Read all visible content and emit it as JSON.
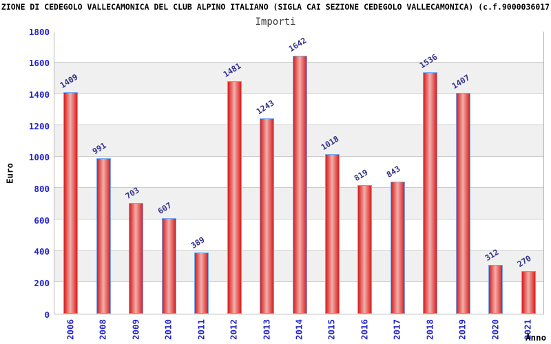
{
  "header": {
    "title": "ZIONE DI CEDEGOLO VALLECAMONICA DEL CLUB ALPINO ITALIANO (SIGLA CAI SEZIONE CEDEGOLO VALLECAMONICA) (c.f.9000036017",
    "subtitle": "Importi"
  },
  "chart_data": {
    "type": "bar",
    "title": "Importi",
    "xlabel": "Anno",
    "ylabel": "Euro",
    "categories": [
      "2006",
      "2008",
      "2009",
      "2010",
      "2011",
      "2012",
      "2013",
      "2014",
      "2015",
      "2016",
      "2017",
      "2018",
      "2019",
      "2020",
      "2021"
    ],
    "values": [
      1409,
      991,
      703,
      607,
      389,
      1481,
      1243,
      1642,
      1018,
      819,
      843,
      1536,
      1407,
      312,
      270
    ],
    "ylim": [
      0,
      1800
    ],
    "yticks": [
      0,
      200,
      400,
      600,
      800,
      1000,
      1200,
      1400,
      1600,
      1800
    ],
    "grid": true,
    "legend": false,
    "band_step": 200,
    "colors": {
      "bar_edge": "#c82525",
      "bar_fill_mid": "#efb0aa",
      "bar_border": "#74a7f0",
      "value_label": "#333388",
      "tick_label": "#2323cc",
      "band_gray": "#f0f0f0",
      "band_white": "#ffffff",
      "gridline": "#cccccc",
      "plot_border": "#b3b3b3",
      "text": "#000000"
    }
  }
}
